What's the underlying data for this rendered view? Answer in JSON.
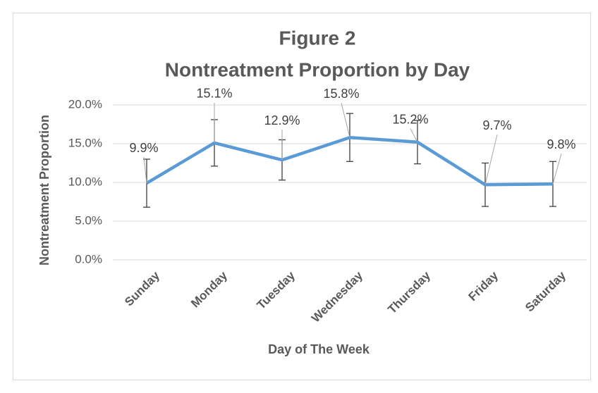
{
  "chart_data": {
    "type": "line",
    "title": [
      "Figure 2",
      "Nontreatment Proportion by Day"
    ],
    "x_label": "Day of The Week",
    "y_label": "Nontreatment Proportion",
    "categories": [
      "Sunday",
      "Monday",
      "Tuesday",
      "Wednesday",
      "Thursday",
      "Friday",
      "Saturday"
    ],
    "series": [
      {
        "color": "#5b9bd5",
        "values": [
          9.9,
          15.1,
          12.9,
          15.8,
          15.2,
          9.7,
          9.8
        ],
        "value_labels": [
          "9.9%",
          "15.1%",
          "12.9%",
          "15.8%",
          "15.2%",
          "9.7%",
          "9.8%"
        ],
        "errors": [
          3.1,
          3.0,
          2.6,
          3.1,
          2.8,
          2.8,
          2.9
        ]
      }
    ],
    "ylim": [
      0,
      20
    ],
    "yticks": [
      {
        "value": 0,
        "label": "0.0%"
      },
      {
        "value": 5,
        "label": "5.0%"
      },
      {
        "value": 10,
        "label": "10.0%"
      },
      {
        "value": 15,
        "label": "15.0%"
      },
      {
        "value": 20,
        "label": "20.0%"
      }
    ],
    "grid": true
  }
}
